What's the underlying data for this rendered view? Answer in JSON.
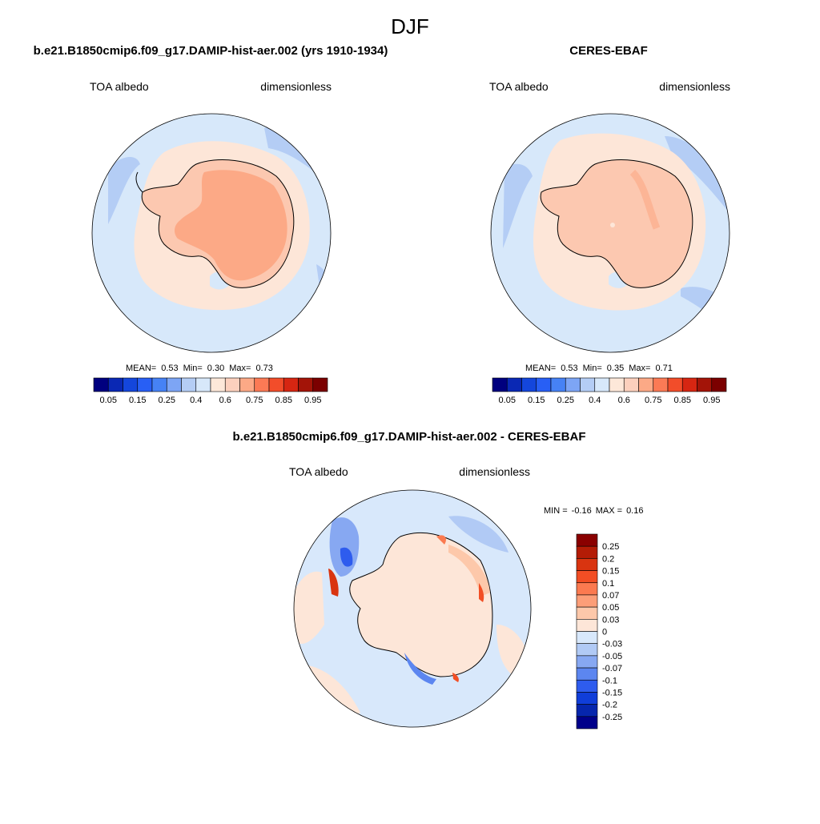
{
  "figure": {
    "title": "DJF"
  },
  "chart_data": [
    {
      "type": "heatmap",
      "projection": "south-polar-stereographic",
      "title": "b.e21.B1850cmip6.f09_g17.DAMIP-hist-aer.002 (yrs 1910-1934)",
      "left_label": "TOA albedo",
      "right_label": "dimensionless",
      "stats": {
        "mean_label": "MEAN=",
        "mean": "0.53",
        "min_label": "Min=",
        "min": "0.30",
        "max_label": "Max=",
        "max": "0.73"
      },
      "colorbar": {
        "orientation": "horizontal",
        "levels": [
          0.05,
          0.1,
          0.15,
          0.2,
          0.25,
          0.3,
          0.4,
          0.5,
          0.6,
          0.7,
          0.75,
          0.8,
          0.85,
          0.9,
          0.95
        ],
        "tick_labels": [
          "0.05",
          "0.15",
          "0.25",
          "0.4",
          "0.6",
          "0.75",
          "0.85",
          "0.95"
        ]
      },
      "fields": {
        "ocean": 0.45,
        "sea_ice_ring": 0.55,
        "ice_sheet": 0.68,
        "plateau": 0.72
      }
    },
    {
      "type": "heatmap",
      "projection": "south-polar-stereographic",
      "title": "CERES-EBAF",
      "left_label": "TOA albedo",
      "right_label": "dimensionless",
      "stats": {
        "mean_label": "MEAN=",
        "mean": "0.53",
        "min_label": "Min=",
        "min": "0.35",
        "max_label": "Max=",
        "max": "0.71"
      },
      "colorbar": {
        "orientation": "horizontal",
        "levels": [
          0.05,
          0.1,
          0.15,
          0.2,
          0.25,
          0.3,
          0.4,
          0.5,
          0.6,
          0.7,
          0.75,
          0.8,
          0.85,
          0.9,
          0.95
        ],
        "tick_labels": [
          "0.05",
          "0.15",
          "0.25",
          "0.4",
          "0.6",
          "0.75",
          "0.85",
          "0.95"
        ]
      },
      "fields": {
        "ocean": 0.45,
        "sea_ice_ring": 0.55,
        "ice_sheet": 0.68
      }
    },
    {
      "type": "heatmap",
      "projection": "south-polar-stereographic",
      "title": "b.e21.B1850cmip6.f09_g17.DAMIP-hist-aer.002 - CERES-EBAF",
      "left_label": "TOA albedo",
      "right_label": "dimensionless",
      "stats": {
        "min_label": "MIN =",
        "min": "-0.16",
        "max_label": "MAX =",
        "max": "0.16"
      },
      "colorbar": {
        "orientation": "vertical",
        "levels": [
          0.25,
          0.2,
          0.15,
          0.1,
          0.07,
          0.05,
          0.03,
          0,
          -0.03,
          -0.05,
          -0.07,
          -0.1,
          -0.15,
          -0.2,
          -0.25
        ],
        "tick_labels": [
          "0.25",
          "0.2",
          "0.15",
          "0.1",
          "0.07",
          "0.05",
          "0.03",
          "0",
          "-0.03",
          "-0.05",
          "-0.07",
          "-0.1",
          "-0.15",
          "-0.2",
          "-0.25"
        ]
      }
    }
  ],
  "palette": {
    "albedo_bins": [
      "#00007f",
      "#0a28b4",
      "#1446dc",
      "#285ff5",
      "#4682f5",
      "#7da5f5",
      "#b4cdf5",
      "#d7e8fa",
      "#fde8d9",
      "#fcd0bd",
      "#fca986",
      "#fb7a55",
      "#f24d2a",
      "#d62612",
      "#a31408",
      "#7b0000"
    ],
    "diff_bins": [
      "#8a0000",
      "#b41c06",
      "#d93410",
      "#f24e24",
      "#fb7a50",
      "#fc9e78",
      "#fdc8aa",
      "#fde6d8",
      "#d8e8fb",
      "#b1caf5",
      "#87a8f2",
      "#5c86f0",
      "#2e5cee",
      "#103ed9",
      "#0626ad",
      "#00008a"
    ],
    "ocean": "#d7e8fa",
    "sea_ice": "#fde6d8",
    "ice_sheet": "#fcc8b0",
    "plateau": "#fca986",
    "coast": "#000000"
  }
}
